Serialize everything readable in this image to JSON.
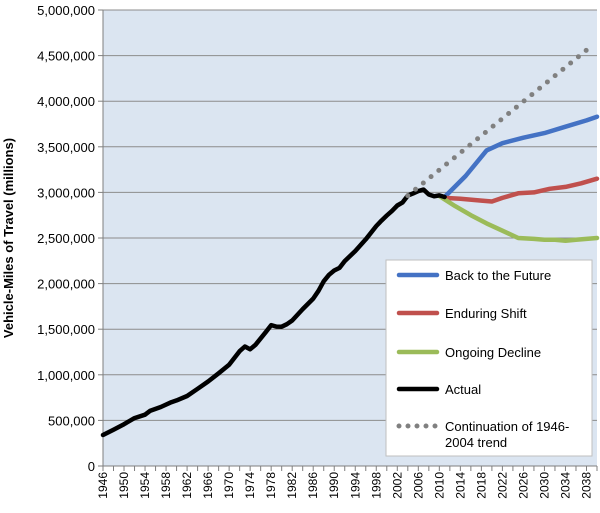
{
  "chart_data": {
    "type": "line",
    "title": "",
    "xlabel": "",
    "ylabel": "Vehicle-Miles of Travel (millions)",
    "xlim": [
      1946,
      2040
    ],
    "ylim": [
      0,
      5000000
    ],
    "x_ticks": [
      1946,
      1950,
      1954,
      1958,
      1962,
      1966,
      1970,
      1974,
      1978,
      1982,
      1986,
      1990,
      1994,
      1998,
      2002,
      2006,
      2010,
      2014,
      2018,
      2022,
      2026,
      2030,
      2034,
      2038
    ],
    "y_ticks": [
      0,
      500000,
      1000000,
      1500000,
      2000000,
      2500000,
      3000000,
      3500000,
      4000000,
      4500000,
      5000000
    ],
    "y_tick_labels": [
      "0",
      "500,000",
      "1,000,000",
      "1,500,000",
      "2,000,000",
      "2,500,000",
      "3,000,000",
      "3,500,000",
      "4,000,000",
      "4,500,000",
      "5,000,000"
    ],
    "grid": "horizontal",
    "background_color": "#dbe5f1",
    "legend_position": "bottom-right",
    "series": [
      {
        "name": "Back to the Future",
        "color": "#4472c4",
        "style": "solid",
        "x": [
          2011,
          2015,
          2019,
          2022,
          2026,
          2030,
          2034,
          2038,
          2040
        ],
        "y": [
          2950000,
          3180000,
          3460000,
          3540000,
          3600000,
          3650000,
          3720000,
          3790000,
          3830000
        ]
      },
      {
        "name": "Enduring Shift",
        "color": "#c0504d",
        "style": "solid",
        "x": [
          2011,
          2014,
          2018,
          2020,
          2022,
          2025,
          2028,
          2031,
          2034,
          2037,
          2040
        ],
        "y": [
          2940000,
          2930000,
          2910000,
          2900000,
          2940000,
          2990000,
          3000000,
          3040000,
          3060000,
          3100000,
          3150000
        ]
      },
      {
        "name": "Ongoing Decline",
        "color": "#9bbb59",
        "style": "solid",
        "x": [
          2010,
          2013,
          2016,
          2019,
          2022,
          2025,
          2028,
          2030,
          2032,
          2034,
          2036,
          2038,
          2040
        ],
        "y": [
          2960000,
          2850000,
          2750000,
          2660000,
          2580000,
          2500000,
          2490000,
          2480000,
          2480000,
          2470000,
          2480000,
          2490000,
          2500000
        ]
      },
      {
        "name": "Actual",
        "color": "#000000",
        "style": "solid",
        "x": [
          1946,
          1948,
          1950,
          1952,
          1954,
          1955,
          1957,
          1959,
          1960,
          1962,
          1964,
          1966,
          1968,
          1970,
          1972,
          1973,
          1974,
          1975,
          1977,
          1978,
          1979,
          1980,
          1981,
          1982,
          1984,
          1986,
          1987,
          1988,
          1989,
          1990,
          1991,
          1992,
          1994,
          1996,
          1998,
          1999,
          2000,
          2001,
          2002,
          2003,
          2004,
          2005,
          2006,
          2007,
          2008,
          2009,
          2010,
          2011
        ],
        "y": [
          340000,
          398000,
          458000,
          525000,
          562000,
          606000,
          647000,
          700000,
          719000,
          767000,
          846000,
          926000,
          1016000,
          1110000,
          1259000,
          1310000,
          1280000,
          1328000,
          1470000,
          1545000,
          1529000,
          1527000,
          1555000,
          1595000,
          1720000,
          1835000,
          1921000,
          2025000,
          2096000,
          2144000,
          2172000,
          2247000,
          2358000,
          2486000,
          2632000,
          2691000,
          2747000,
          2797000,
          2856000,
          2890000,
          2965000,
          2989000,
          3014000,
          3031000,
          2977000,
          2957000,
          2967000,
          2950000
        ]
      },
      {
        "name": "Continuation of 1946-2004 trend",
        "color": "#808080",
        "style": "dotted",
        "x": [
          2004,
          2038
        ],
        "y": [
          2965000,
          4560000
        ]
      }
    ],
    "legend": [
      {
        "label_line1": "Back to the Future",
        "label_line2": ""
      },
      {
        "label_line1": "Enduring Shift",
        "label_line2": ""
      },
      {
        "label_line1": "Ongoing Decline",
        "label_line2": ""
      },
      {
        "label_line1": "Actual",
        "label_line2": ""
      },
      {
        "label_line1": "Continuation of 1946-",
        "label_line2": "2004 trend"
      }
    ]
  }
}
